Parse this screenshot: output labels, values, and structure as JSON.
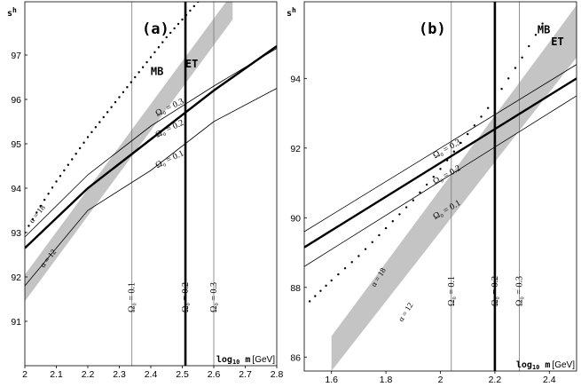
{
  "chart_data": [
    {
      "panel": "(a)",
      "ylabel": "s",
      "ylabel_sup": "h",
      "xlabel_bold": "log",
      "xlabel_sub": "10",
      "xlabel_var": " m",
      "xlabel_unit": "[GeV]",
      "xlim": [
        2.0,
        2.8
      ],
      "ylim": [
        90.0,
        98.2
      ],
      "xticks": [
        "2",
        "2.1",
        "2.2",
        "2.3",
        "2.4",
        "2.5",
        "2.6",
        "2.7",
        "2.8"
      ],
      "xtick_values": [
        2.0,
        2.1,
        2.2,
        2.3,
        2.4,
        2.5,
        2.6,
        2.7,
        2.8
      ],
      "yticks": [
        "91",
        "92",
        "93",
        "94",
        "95",
        "96",
        "97"
      ],
      "ytick_values": [
        91,
        92,
        93,
        94,
        95,
        96,
        97
      ],
      "model_labels": [
        {
          "text": "MB",
          "x": 2.42,
          "y": 96.55
        },
        {
          "text": "ET",
          "x": 2.53,
          "y": 96.72
        }
      ],
      "band": {
        "x": [
          2.0,
          2.66
        ],
        "lower": [
          91.45,
          97.8
        ],
        "upper": [
          92.05,
          98.4
        ]
      },
      "mb_points": {
        "x": [
          2.0,
          2.05,
          2.1,
          2.15,
          2.2,
          2.25,
          2.3,
          2.35,
          2.4,
          2.45,
          2.5,
          2.55,
          2.6
        ],
        "y": [
          93.0,
          93.6,
          94.15,
          94.65,
          95.15,
          95.6,
          96.05,
          96.5,
          96.95,
          97.4,
          97.8,
          98.2,
          98.6
        ]
      },
      "curves": [
        {
          "label": "Ω₀ = 0.3",
          "bold": false,
          "x": [
            2.0,
            2.2,
            2.4,
            2.6,
            2.8
          ],
          "y": [
            92.9,
            94.3,
            95.4,
            96.3,
            97.15
          ]
        },
        {
          "label": "Ω₀ = 0.2",
          "bold": true,
          "x": [
            2.0,
            2.2,
            2.4,
            2.6,
            2.8
          ],
          "y": [
            92.65,
            94.0,
            95.1,
            96.2,
            97.2
          ]
        },
        {
          "label": "Ω₀ = 0.1",
          "bold": false,
          "x": [
            2.0,
            2.2,
            2.4,
            2.6,
            2.8
          ],
          "y": [
            91.8,
            93.5,
            94.4,
            95.5,
            96.25
          ]
        }
      ],
      "curve_labels": [
        {
          "text": "Ω₀ = 0.3",
          "x": 2.42,
          "y": 95.62
        },
        {
          "text": "Ω₀ = 0.2",
          "x": 2.42,
          "y": 95.14
        },
        {
          "text": "Ω₀ = 0.1",
          "x": 2.42,
          "y": 94.45
        }
      ],
      "alpha_labels": [
        {
          "text": "α = 18",
          "x": 2.025,
          "y": 93.2
        },
        {
          "text": "α = 12",
          "x": 2.06,
          "y": 92.2
        }
      ],
      "vlines": [
        {
          "x": 2.34,
          "bold": false,
          "label": "Ω₀ = 0.1"
        },
        {
          "x": 2.51,
          "bold": true,
          "label": "Ω₀ = 0.2"
        },
        {
          "x": 2.6,
          "bold": false,
          "label": "Ω₀ = 0.3"
        }
      ]
    },
    {
      "panel": "(b)",
      "ylabel": "s",
      "ylabel_sup": "h",
      "xlabel_bold": "log",
      "xlabel_sub": "10",
      "xlabel_var": " m",
      "xlabel_unit": "[GeV]",
      "xlim": [
        1.5,
        2.5
      ],
      "ylim": [
        85.6,
        96.2
      ],
      "xticks": [
        "1.6",
        "1.8",
        "2",
        "2.2",
        "2.4"
      ],
      "xtick_values": [
        1.6,
        1.8,
        2.0,
        2.2,
        2.4
      ],
      "yticks": [
        "86",
        "88",
        "90",
        "92",
        "94"
      ],
      "ytick_values": [
        86,
        88,
        90,
        92,
        94
      ],
      "model_labels": [
        {
          "text": "MB",
          "x": 2.38,
          "y": 95.3
        },
        {
          "text": "ET",
          "x": 2.43,
          "y": 94.95
        }
      ],
      "band": {
        "x": [
          1.6,
          2.5
        ],
        "lower": [
          85.6,
          94.6
        ],
        "upper": [
          86.6,
          96.1
        ]
      },
      "mb_points": {
        "x": [
          1.52,
          1.6,
          1.7,
          1.8,
          1.9,
          2.0,
          2.1,
          2.2,
          2.3,
          2.4
        ],
        "y": [
          87.6,
          88.2,
          88.9,
          89.7,
          90.5,
          91.4,
          92.4,
          93.4,
          94.6,
          95.9
        ]
      },
      "curves": [
        {
          "label": "Ω₀ = 0.3",
          "bold": false,
          "x": [
            1.5,
            2.5
          ],
          "y": [
            89.6,
            94.4
          ]
        },
        {
          "label": "Ω₀ = 0.2",
          "bold": true,
          "x": [
            1.5,
            2.5
          ],
          "y": [
            89.15,
            94.0
          ]
        },
        {
          "label": "Ω₀ = 0.1",
          "bold": false,
          "x": [
            1.5,
            2.5
          ],
          "y": [
            88.6,
            93.5
          ]
        }
      ],
      "curve_labels": [
        {
          "text": "Ω₀ = 0.3",
          "x": 1.98,
          "y": 91.7
        },
        {
          "text": "Ω₀ = 0.2",
          "x": 1.98,
          "y": 90.95
        },
        {
          "text": "Ω₀ = 0.1",
          "x": 1.98,
          "y": 89.95
        }
      ],
      "alpha_labels": [
        {
          "text": "α = 18",
          "x": 1.76,
          "y": 88.0
        },
        {
          "text": "α = 12",
          "x": 1.86,
          "y": 87.0
        }
      ],
      "vlines": [
        {
          "x": 2.04,
          "bold": false,
          "label": "Ω₀ = 0.1"
        },
        {
          "x": 2.2,
          "bold": true,
          "label": "Ω₀ = 0.2"
        },
        {
          "x": 2.29,
          "bold": false,
          "label": "Ω₀ = 0.3"
        }
      ]
    }
  ]
}
